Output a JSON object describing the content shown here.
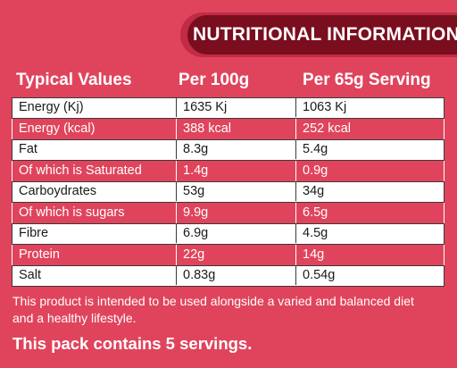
{
  "banner": {
    "title": "NUTRITIONAL INFORMATION"
  },
  "headers": {
    "col1": "Typical Values",
    "col2": "Per 100g",
    "col3": "Per 65g Serving"
  },
  "rows": [
    {
      "label": "Energy  (Kj)",
      "per100": "1635 Kj",
      "perServing": "1063 Kj"
    },
    {
      "label": "Energy (kcal)",
      "per100": "388 kcal",
      "perServing": "252 kcal"
    },
    {
      "label": "Fat",
      "per100": "8.3g",
      "perServing": "5.4g"
    },
    {
      "label": "Of which is Saturated",
      "per100": "1.4g",
      "perServing": "0.9g"
    },
    {
      "label": "Carboydrates",
      "per100": "53g",
      "perServing": "34g"
    },
    {
      "label": "Of which is sugars",
      "per100": "9.9g",
      "perServing": "6.5g"
    },
    {
      "label": "Fibre",
      "per100": "6.9g",
      "perServing": "4.5g"
    },
    {
      "label": "Protein",
      "per100": "22g",
      "perServing": "14g"
    },
    {
      "label": "Salt",
      "per100": "0.83g",
      "perServing": "0.54g"
    }
  ],
  "footer": {
    "note": "This product is intended to be used alongside a varied and balanced diet and a healthy lifestyle.",
    "servings": "This pack contains 5 servings."
  },
  "colors": {
    "background": "#e0445c",
    "banner": "#7a0d1e",
    "row_white": "#ffffff"
  }
}
